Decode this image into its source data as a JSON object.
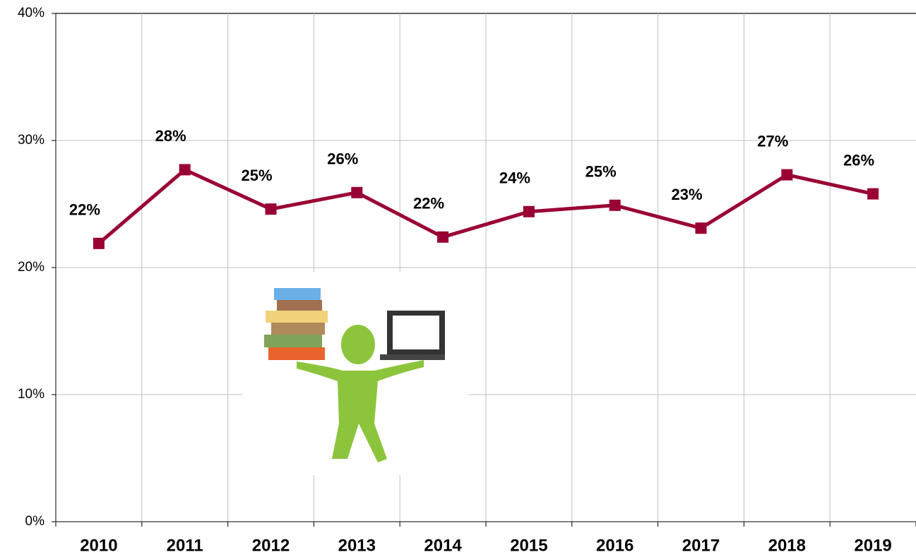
{
  "chart_data": {
    "type": "line",
    "categories": [
      "2010",
      "2011",
      "2012",
      "2013",
      "2014",
      "2015",
      "2016",
      "2017",
      "2018",
      "2019"
    ],
    "series": [
      {
        "color": "#990033",
        "values": [
          21.9,
          27.7,
          24.6,
          25.9,
          22.4,
          24.4,
          24.9,
          23.1,
          27.3,
          25.8
        ],
        "value_labels": [
          "22%",
          "28%",
          "25%",
          "26%",
          "22%",
          "24%",
          "25%",
          "23%",
          "27%",
          "26%"
        ]
      }
    ],
    "ylim": [
      0,
      40
    ],
    "yticks": [
      {
        "value": 0,
        "label": "0%"
      },
      {
        "value": 10,
        "label": "10%"
      },
      {
        "value": 20,
        "label": "20%"
      },
      {
        "value": 30,
        "label": "30%"
      },
      {
        "value": 40,
        "label": "40%"
      }
    ],
    "grid": true
  }
}
